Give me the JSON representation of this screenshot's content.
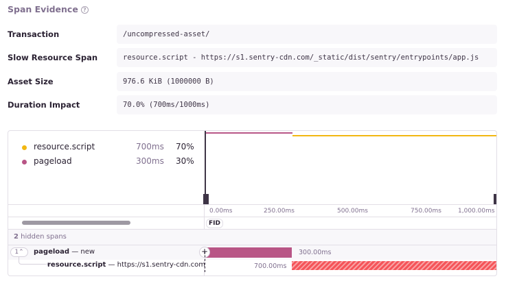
{
  "section": {
    "title": "Span Evidence",
    "help_icon": "question-circle-icon"
  },
  "evidence": [
    {
      "label": "Transaction",
      "value": "/uncompressed-asset/"
    },
    {
      "label": "Slow Resource Span",
      "value": "resource.script - https://s1.sentry-cdn.com/_static/dist/sentry/entrypoints/app.js"
    },
    {
      "label": "Asset Size",
      "value": "976.6 KiB (1000000 B)"
    },
    {
      "label": "Duration Impact",
      "value": "70.0% (700ms/1000ms)"
    }
  ],
  "legend": [
    {
      "name": "resource.script",
      "duration": "700ms",
      "percent": "70%",
      "color": "#f2b712"
    },
    {
      "name": "pageload",
      "duration": "300ms",
      "percent": "30%",
      "color": "#b85586"
    }
  ],
  "axis_ticks": [
    "0.00ms",
    "250.00ms",
    "500.00ms",
    "750.00ms",
    "1,000.00ms"
  ],
  "marker": "FID",
  "hidden_spans": {
    "count": "2",
    "label": "hidden spans"
  },
  "spans": [
    {
      "toggle": "1",
      "op": "pageload",
      "desc": "new",
      "duration": "300.00ms",
      "start_ms": 0,
      "end_ms": 300,
      "color": "#b85586"
    },
    {
      "op": "resource.script",
      "desc": "https://s1.sentry-cdn.com/",
      "duration": "700.00ms",
      "start_ms": 300,
      "end_ms": 1000,
      "color": "#f55459"
    }
  ],
  "separator": " — "
}
